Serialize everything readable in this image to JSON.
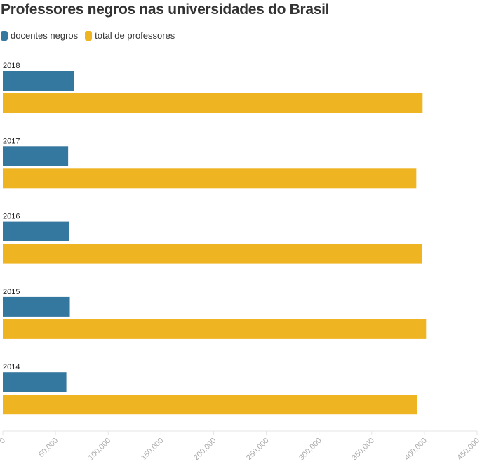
{
  "chart_data": {
    "type": "bar",
    "orientation": "horizontal",
    "title": "Professores negros nas universidades do Brasil",
    "categories": [
      "2018",
      "2017",
      "2016",
      "2015",
      "2014"
    ],
    "series": [
      {
        "name": "docentes negros",
        "color": "#35789f",
        "values": [
          67400,
          62000,
          63200,
          63600,
          60300
        ]
      },
      {
        "name": "total de professores",
        "color": "#eeb422",
        "values": [
          398300,
          392300,
          397800,
          401600,
          393400
        ]
      }
    ],
    "xlim": [
      0,
      450000
    ],
    "xticks": [
      0,
      50000,
      100000,
      150000,
      200000,
      250000,
      300000,
      350000,
      400000,
      450000
    ],
    "xtick_labels": [
      "0",
      "50,000",
      "100,000",
      "150,000",
      "200,000",
      "250,000",
      "300,000",
      "350,000",
      "400,000",
      "450,000"
    ],
    "legend_position": "top-left",
    "grid": false
  }
}
